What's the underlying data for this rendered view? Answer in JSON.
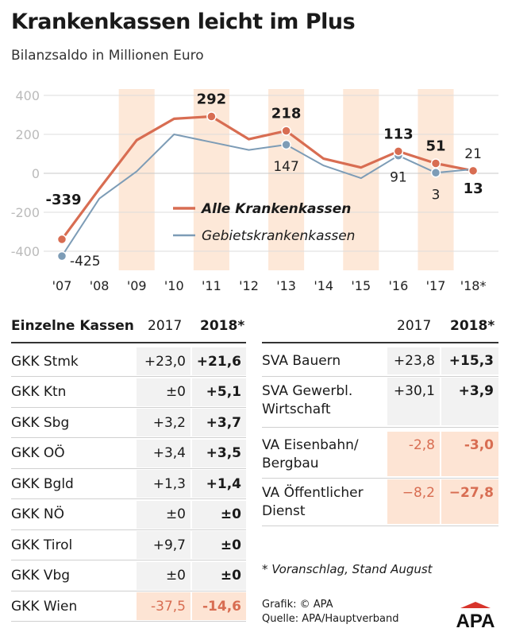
{
  "title": "Krankenkassen leicht im Plus",
  "subtitle": "Bilanzsaldo in Millionen Euro",
  "chart_data": {
    "type": "line",
    "title": "Krankenkassen leicht im Plus",
    "ylabel": "Bilanzsaldo in Millionen Euro",
    "categories": [
      "'07",
      "'08",
      "'09",
      "'10",
      "'11",
      "'12",
      "'13",
      "'14",
      "'15",
      "'16",
      "'17",
      "'18*"
    ],
    "yticks": [
      "400",
      "200",
      "0",
      "-200",
      "-400"
    ],
    "ylim": [
      -500,
      430
    ],
    "series": [
      {
        "name": "Alle Krankenkassen",
        "color": "#d86d52",
        "values": [
          -339,
          -80,
          170,
          280,
          292,
          175,
          218,
          75,
          30,
          113,
          51,
          13
        ]
      },
      {
        "name": "Gebietskrankenkassen",
        "color": "#7d9cb6",
        "values": [
          -425,
          -130,
          10,
          200,
          160,
          120,
          147,
          40,
          -25,
          91,
          3,
          21
        ]
      }
    ],
    "labels_alle": [
      {
        "i": 0,
        "text": "-339"
      },
      {
        "i": 4,
        "text": "292"
      },
      {
        "i": 6,
        "text": "218"
      },
      {
        "i": 9,
        "text": "113"
      },
      {
        "i": 10,
        "text": "51"
      },
      {
        "i": 11,
        "text": "13"
      }
    ],
    "labels_gkk": [
      {
        "i": 0,
        "text": "-425"
      },
      {
        "i": 6,
        "text": "147"
      },
      {
        "i": 9,
        "text": "91"
      },
      {
        "i": 10,
        "text": "3"
      },
      {
        "i": 11,
        "text": "21"
      }
    ],
    "legend": [
      "Alle Krankenkassen",
      "Gebietskrankenkassen"
    ]
  },
  "left_table": {
    "header_title": "Einzelne Kassen",
    "header_2017": "2017",
    "header_2018": "2018*",
    "rows": [
      {
        "name": "GKK Stmk",
        "v2017": "+23,0",
        "v2018": "+21,6",
        "neg": false
      },
      {
        "name": "GKK Ktn",
        "v2017": "±0",
        "v2018": "+5,1",
        "neg": false
      },
      {
        "name": "GKK Sbg",
        "v2017": "+3,2",
        "v2018": "+3,7",
        "neg": false
      },
      {
        "name": "GKK OÖ",
        "v2017": "+3,4",
        "v2018": "+3,5",
        "neg": false
      },
      {
        "name": "GKK Bgld",
        "v2017": "+1,3",
        "v2018": "+1,4",
        "neg": false
      },
      {
        "name": "GKK NÖ",
        "v2017": "±0",
        "v2018": "±0",
        "neg": false
      },
      {
        "name": "GKK Tirol",
        "v2017": "+9,7",
        "v2018": "±0",
        "neg": false
      },
      {
        "name": "GKK Vbg",
        "v2017": "±0",
        "v2018": "±0",
        "neg": false
      },
      {
        "name": "GKK Wien",
        "v2017": "-37,5",
        "v2018": "-14,6",
        "neg": true
      }
    ]
  },
  "right_table": {
    "header_2017": "2017",
    "header_2018": "2018*",
    "rows": [
      {
        "name": "SVA Bauern",
        "v2017": "+23,8",
        "v2018": "+15,3",
        "neg": false
      },
      {
        "name": "SVA Gewerbl. Wirtschaft",
        "v2017": "+30,1",
        "v2018": "+3,9",
        "neg": false
      },
      {
        "name": "VA Eisenbahn/ Bergbau",
        "v2017": "-2,8",
        "v2018": "-3,0",
        "neg": true
      },
      {
        "name": "VA Öffentlicher Dienst",
        "v2017": "−8,2",
        "v2018": "−27,8",
        "neg": true
      }
    ]
  },
  "footnote": "* Voranschlag, Stand August",
  "credit_line1": "Grafik: © APA",
  "credit_line2": "Quelle: APA/Hauptverband",
  "logo_text": "APA",
  "colors": {
    "alle": "#d86d52",
    "gkk": "#7d9cb6",
    "band": "#fde8d8",
    "grid": "#dddddd"
  }
}
